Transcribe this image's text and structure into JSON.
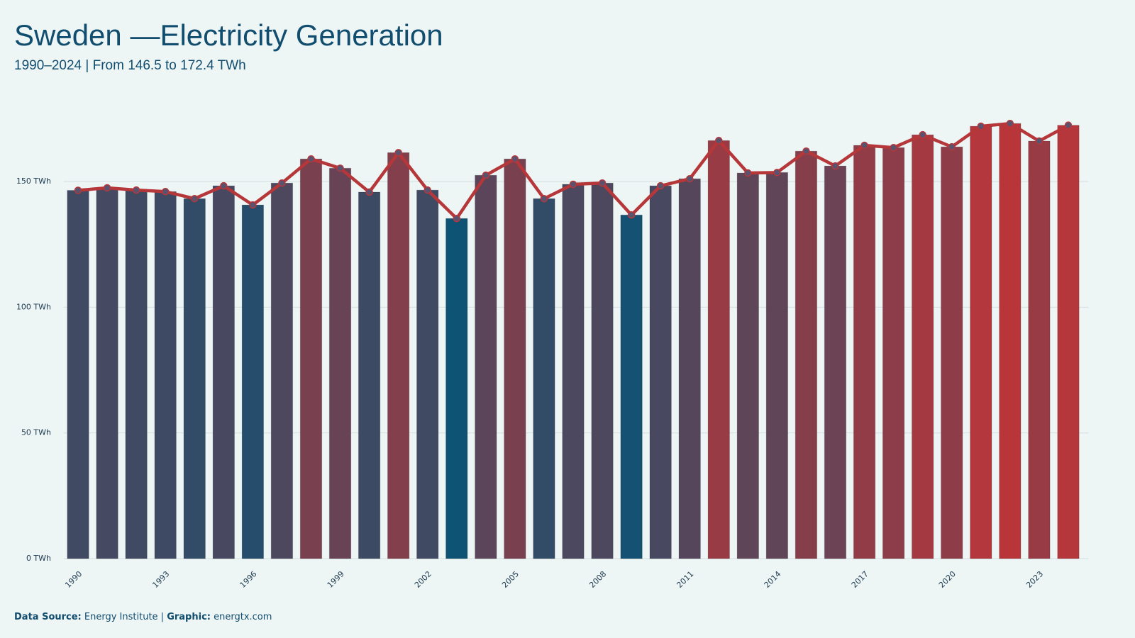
{
  "chart_data": {
    "type": "bar",
    "title": "Sweden —Electricity Generation",
    "subtitle": "1990–2024 | From 146.5 to 172.4 TWh",
    "x": [
      1990,
      1991,
      1992,
      1993,
      1994,
      1995,
      1996,
      1997,
      1998,
      1999,
      2000,
      2001,
      2002,
      2003,
      2004,
      2005,
      2006,
      2007,
      2008,
      2009,
      2010,
      2011,
      2012,
      2013,
      2014,
      2015,
      2016,
      2017,
      2018,
      2019,
      2020,
      2021,
      2022,
      2023,
      2024
    ],
    "values": [
      146.5,
      147.5,
      146.6,
      146.0,
      143.2,
      148.3,
      140.7,
      149.4,
      159.0,
      155.3,
      145.8,
      161.5,
      146.6,
      135.3,
      152.5,
      159.0,
      143.2,
      148.9,
      149.4,
      136.7,
      148.3,
      151.1,
      166.3,
      153.4,
      153.6,
      162.1,
      156.2,
      164.4,
      163.5,
      168.6,
      163.8,
      172.0,
      173.1,
      166.1,
      172.4
    ],
    "xlim": [
      1989.5,
      2024.5
    ],
    "xticks": [
      1990,
      1993,
      1996,
      1999,
      2002,
      2005,
      2008,
      2011,
      2014,
      2017,
      2020,
      2023
    ],
    "ylim": [
      0,
      185
    ],
    "yticks": [
      {
        "value": 0,
        "label": "0 TWh"
      },
      {
        "value": 50,
        "label": "50 TWh"
      },
      {
        "value": 100,
        "label": "100 TWh"
      },
      {
        "value": 150,
        "label": "150 TWh"
      }
    ],
    "grid": true,
    "bar_colors": {
      "low": "#0e5274",
      "high": "#b8363a"
    },
    "line_color": "#b5373a",
    "marker_color": "#5a5370",
    "footer": {
      "source_label": "Data Source:",
      "source": "Energy Institute |",
      "graphic_label": "Graphic:",
      "graphic": "energtx.com"
    }
  }
}
